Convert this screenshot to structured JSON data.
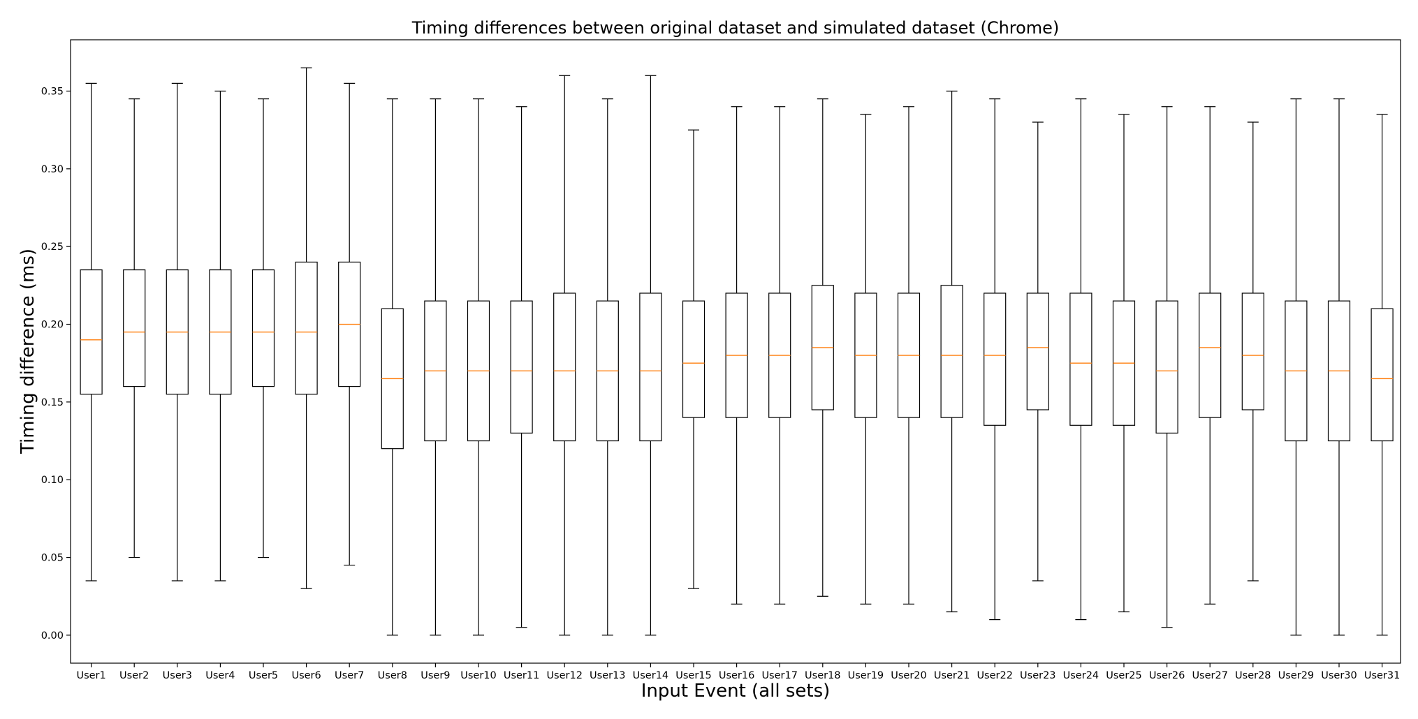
{
  "chart_data": {
    "type": "boxplot",
    "title": "Timing differences between original dataset and simulated dataset (Chrome)",
    "xlabel": "Input Event (all sets)",
    "ylabel": "Timing difference (ms)",
    "ylim": [
      -0.018,
      0.383
    ],
    "yticks": [
      0.0,
      0.05,
      0.1,
      0.15,
      0.2,
      0.25,
      0.3,
      0.35
    ],
    "ytick_labels": [
      "0.00",
      "0.05",
      "0.10",
      "0.15",
      "0.20",
      "0.25",
      "0.30",
      "0.35"
    ],
    "grid": false,
    "colors": {
      "box": "#000000",
      "median": "#ff7f0e"
    },
    "categories": [
      "User1",
      "User2",
      "User3",
      "User4",
      "User5",
      "User6",
      "User7",
      "User8",
      "User9",
      "User10",
      "User11",
      "User12",
      "User13",
      "User14",
      "User15",
      "User16",
      "User17",
      "User18",
      "User19",
      "User20",
      "User21",
      "User22",
      "User23",
      "User24",
      "User25",
      "User26",
      "User27",
      "User28",
      "User29",
      "User30",
      "User31"
    ],
    "boxes": [
      {
        "min": 0.035,
        "q1": 0.155,
        "median": 0.19,
        "q3": 0.235,
        "max": 0.355
      },
      {
        "min": 0.05,
        "q1": 0.16,
        "median": 0.195,
        "q3": 0.235,
        "max": 0.345
      },
      {
        "min": 0.035,
        "q1": 0.155,
        "median": 0.195,
        "q3": 0.235,
        "max": 0.355
      },
      {
        "min": 0.035,
        "q1": 0.155,
        "median": 0.195,
        "q3": 0.235,
        "max": 0.35
      },
      {
        "min": 0.05,
        "q1": 0.16,
        "median": 0.195,
        "q3": 0.235,
        "max": 0.345
      },
      {
        "min": 0.03,
        "q1": 0.155,
        "median": 0.195,
        "q3": 0.24,
        "max": 0.365
      },
      {
        "min": 0.045,
        "q1": 0.16,
        "median": 0.2,
        "q3": 0.24,
        "max": 0.355
      },
      {
        "min": 0.0,
        "q1": 0.12,
        "median": 0.165,
        "q3": 0.21,
        "max": 0.345
      },
      {
        "min": 0.0,
        "q1": 0.125,
        "median": 0.17,
        "q3": 0.215,
        "max": 0.345
      },
      {
        "min": 0.0,
        "q1": 0.125,
        "median": 0.17,
        "q3": 0.215,
        "max": 0.345
      },
      {
        "min": 0.005,
        "q1": 0.13,
        "median": 0.17,
        "q3": 0.215,
        "max": 0.34
      },
      {
        "min": 0.0,
        "q1": 0.125,
        "median": 0.17,
        "q3": 0.22,
        "max": 0.36
      },
      {
        "min": 0.0,
        "q1": 0.125,
        "median": 0.17,
        "q3": 0.215,
        "max": 0.345
      },
      {
        "min": 0.0,
        "q1": 0.125,
        "median": 0.17,
        "q3": 0.22,
        "max": 0.36
      },
      {
        "min": 0.03,
        "q1": 0.14,
        "median": 0.175,
        "q3": 0.215,
        "max": 0.325
      },
      {
        "min": 0.02,
        "q1": 0.14,
        "median": 0.18,
        "q3": 0.22,
        "max": 0.34
      },
      {
        "min": 0.02,
        "q1": 0.14,
        "median": 0.18,
        "q3": 0.22,
        "max": 0.34
      },
      {
        "min": 0.025,
        "q1": 0.145,
        "median": 0.185,
        "q3": 0.225,
        "max": 0.345
      },
      {
        "min": 0.02,
        "q1": 0.14,
        "median": 0.18,
        "q3": 0.22,
        "max": 0.335
      },
      {
        "min": 0.02,
        "q1": 0.14,
        "median": 0.18,
        "q3": 0.22,
        "max": 0.34
      },
      {
        "min": 0.015,
        "q1": 0.14,
        "median": 0.18,
        "q3": 0.225,
        "max": 0.35
      },
      {
        "min": 0.01,
        "q1": 0.135,
        "median": 0.18,
        "q3": 0.22,
        "max": 0.345
      },
      {
        "min": 0.035,
        "q1": 0.145,
        "median": 0.185,
        "q3": 0.22,
        "max": 0.33
      },
      {
        "min": 0.01,
        "q1": 0.135,
        "median": 0.175,
        "q3": 0.22,
        "max": 0.345
      },
      {
        "min": 0.015,
        "q1": 0.135,
        "median": 0.175,
        "q3": 0.215,
        "max": 0.335
      },
      {
        "min": 0.005,
        "q1": 0.13,
        "median": 0.17,
        "q3": 0.215,
        "max": 0.34
      },
      {
        "min": 0.02,
        "q1": 0.14,
        "median": 0.185,
        "q3": 0.22,
        "max": 0.34
      },
      {
        "min": 0.035,
        "q1": 0.145,
        "median": 0.18,
        "q3": 0.22,
        "max": 0.33
      },
      {
        "min": 0.0,
        "q1": 0.125,
        "median": 0.17,
        "q3": 0.215,
        "max": 0.345
      },
      {
        "min": 0.0,
        "q1": 0.125,
        "median": 0.17,
        "q3": 0.215,
        "max": 0.345
      },
      {
        "min": 0.0,
        "q1": 0.125,
        "median": 0.165,
        "q3": 0.21,
        "max": 0.335
      }
    ]
  }
}
